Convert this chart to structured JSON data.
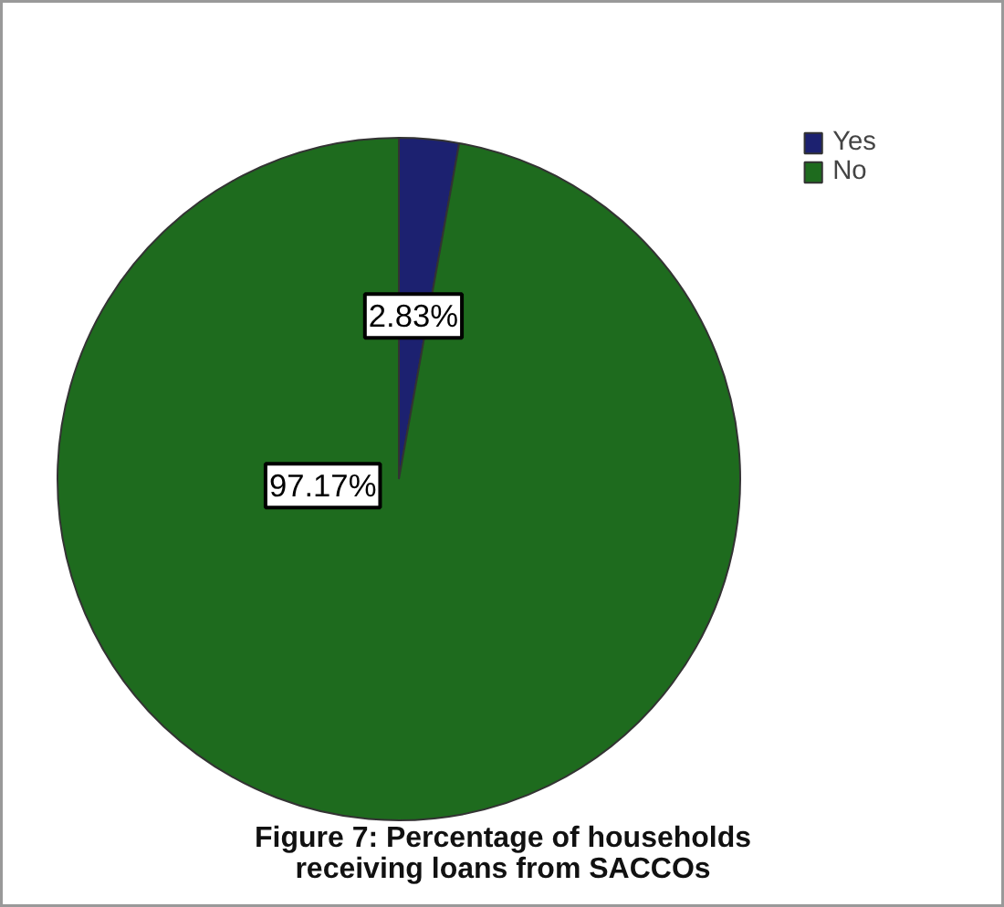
{
  "chart_data": {
    "type": "pie",
    "categories": [
      "Yes",
      "No"
    ],
    "values": [
      2.83,
      97.17
    ],
    "colors": [
      "#1c2170",
      "#1e6b1e"
    ],
    "value_labels": [
      "2.83%",
      "97.17%"
    ],
    "legend": "top right",
    "annotations": [
      "Figure 7: Percentage of households receiving loans from SACCOs"
    ]
  }
}
